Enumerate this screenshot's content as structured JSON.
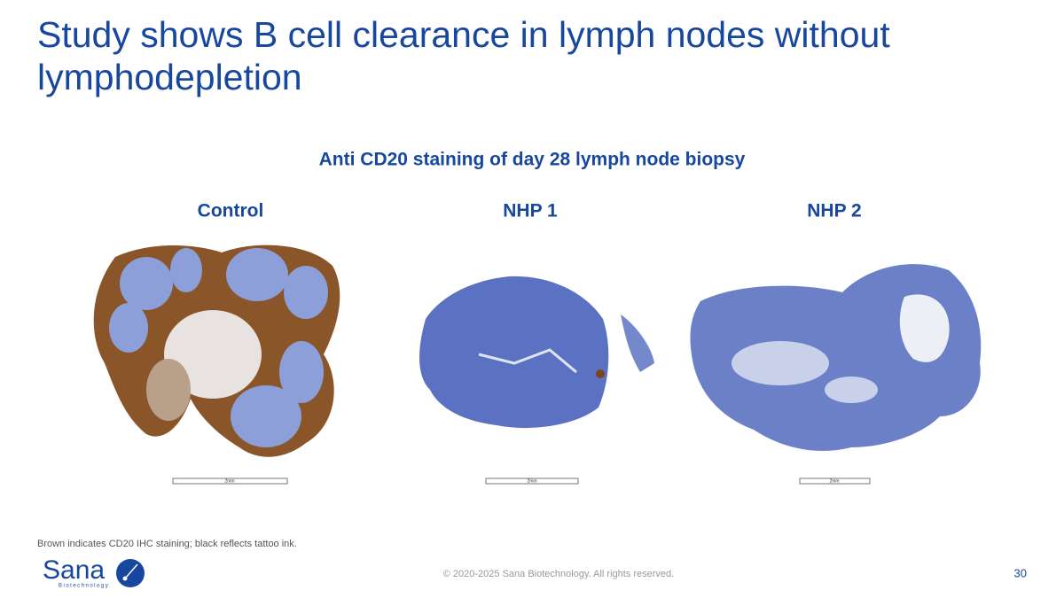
{
  "header": {
    "title_lines": [
      "Study shows B cell clearance in lymph nodes without",
      "lymphodepletion"
    ]
  },
  "figure": {
    "subtitle": "Anti CD20 staining of day 28 lymph node biopsy",
    "panels": [
      {
        "label": "Control",
        "scale_bar": "2mm"
      },
      {
        "label": "NHP 1",
        "scale_bar": "2mm"
      },
      {
        "label": "NHP 2",
        "scale_bar": "2mm"
      }
    ]
  },
  "footnote": "Brown indicates CD20 IHC staining; black reflects tattoo ink.",
  "footer": {
    "logo_name": "Sana",
    "logo_tagline": "Biotechnology",
    "copyright": "© 2020-2025 Sana Biotechnology. All rights reserved.",
    "page_number": 30
  }
}
